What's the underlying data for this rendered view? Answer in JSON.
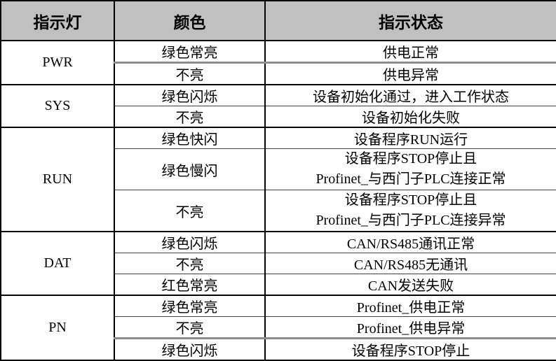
{
  "colors": {
    "header_bg": "#c0c0c0",
    "border_dark": "#000000",
    "border_light": "#8e8e8e",
    "text": "#000000",
    "page_bg": "#ffffff"
  },
  "table": {
    "headers": [
      "指示灯",
      "颜色",
      "指示状态"
    ],
    "groups": [
      {
        "indicator": "PWR",
        "rows": [
          {
            "color": "绿色常亮",
            "state": "供电正常"
          },
          {
            "color": "不亮",
            "state": "供电异常"
          }
        ]
      },
      {
        "indicator": "SYS",
        "rows": [
          {
            "color": "绿色闪烁",
            "state": "设备初始化通过，进入工作状态"
          },
          {
            "color": "不亮",
            "state": "设备初始化失败"
          }
        ]
      },
      {
        "indicator": "RUN",
        "rows": [
          {
            "color": "绿色快闪",
            "state": "设备程序RUN运行"
          },
          {
            "color": "绿色慢闪",
            "state_lines": [
              "设备程序STOP停止且",
              "Profinet_与西门子PLC连接正常"
            ]
          },
          {
            "color": "不亮",
            "state_lines": [
              "设备程序STOP停止且",
              "Profinet_与西门子PLC连接异常"
            ]
          }
        ]
      },
      {
        "indicator": "DAT",
        "rows": [
          {
            "color": "绿色闪烁",
            "state": "CAN/RS485通讯正常"
          },
          {
            "color": "不亮",
            "state": "CAN/RS485无通讯"
          },
          {
            "color": "红色常亮",
            "state": "CAN发送失败"
          }
        ]
      },
      {
        "indicator": "PN",
        "rows": [
          {
            "color": "绿色常亮",
            "state": "Profinet_供电正常"
          },
          {
            "color": "不亮",
            "state": "Profinet_供电异常"
          },
          {
            "color": "绿色闪烁",
            "state": "设备程序STOP停止"
          }
        ]
      }
    ]
  }
}
